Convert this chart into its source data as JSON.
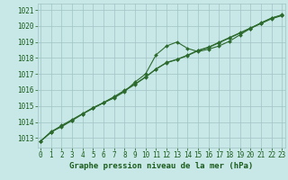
{
  "xlabel": "Graphe pression niveau de la mer (hPa)",
  "x": [
    0,
    1,
    2,
    3,
    4,
    5,
    6,
    7,
    8,
    9,
    10,
    11,
    12,
    13,
    14,
    15,
    16,
    17,
    18,
    19,
    20,
    21,
    22,
    23
  ],
  "line1_y": [
    1012.8,
    1013.4,
    1013.7,
    1014.1,
    1014.5,
    1014.9,
    1015.2,
    1015.5,
    1015.9,
    1016.5,
    1017.0,
    1018.2,
    1018.75,
    1019.0,
    1018.6,
    1018.4,
    1018.55,
    1018.75,
    1019.05,
    1019.45,
    1019.85,
    1020.2,
    1020.5,
    1020.7
  ],
  "line2_y": [
    1012.8,
    1013.35,
    1013.75,
    1014.1,
    1014.5,
    1014.85,
    1015.2,
    1015.55,
    1015.95,
    1016.35,
    1016.8,
    1017.3,
    1017.7,
    1017.9,
    1018.15,
    1018.45,
    1018.65,
    1018.95,
    1019.25,
    1019.55,
    1019.85,
    1020.15,
    1020.45,
    1020.65
  ],
  "line3_y": [
    1012.8,
    1013.38,
    1013.78,
    1014.15,
    1014.52,
    1014.88,
    1015.22,
    1015.58,
    1015.98,
    1016.38,
    1016.82,
    1017.32,
    1017.72,
    1017.92,
    1018.18,
    1018.48,
    1018.68,
    1018.98,
    1019.28,
    1019.58,
    1019.88,
    1020.18,
    1020.48,
    1020.68
  ],
  "line_color": "#2d6a2d",
  "marker": "D",
  "marker_size": 2.0,
  "background_color": "#c8e8e8",
  "grid_color": "#a0c4c4",
  "xlim": [
    -0.3,
    23.3
  ],
  "ylim": [
    1012.4,
    1021.4
  ],
  "yticks": [
    1013,
    1014,
    1015,
    1016,
    1017,
    1018,
    1019,
    1020,
    1021
  ],
  "xticks": [
    0,
    1,
    2,
    3,
    4,
    5,
    6,
    7,
    8,
    9,
    10,
    11,
    12,
    13,
    14,
    15,
    16,
    17,
    18,
    19,
    20,
    21,
    22,
    23
  ],
  "xlabel_fontsize": 6.5,
  "tick_fontsize": 5.5,
  "label_color": "#1a5c1a",
  "linewidth": 0.8
}
